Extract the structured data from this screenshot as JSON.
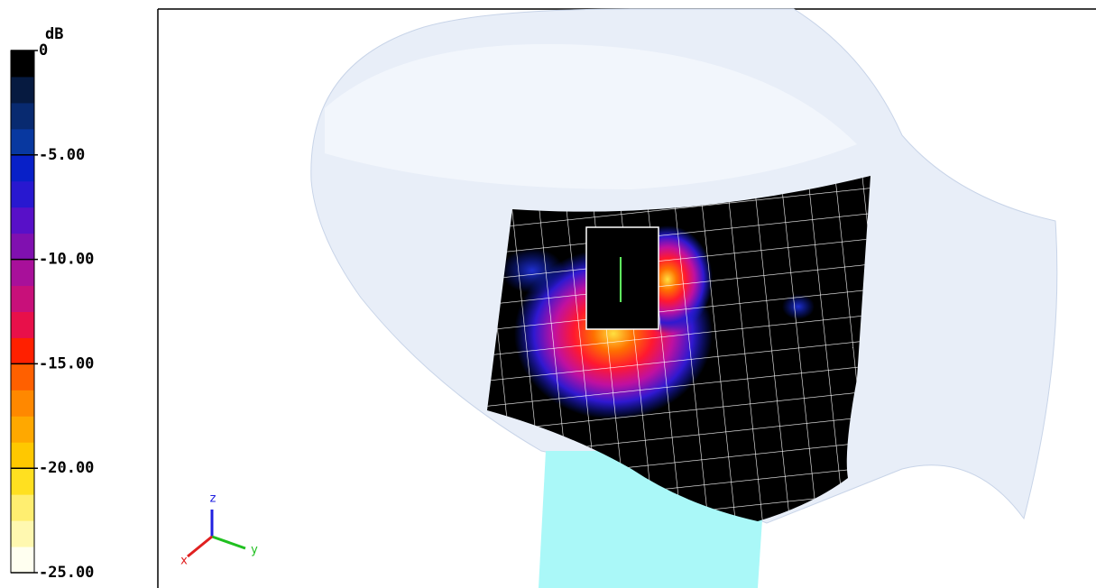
{
  "colorbar": {
    "title": "dB",
    "lim": [
      -25,
      0
    ],
    "ticks": [
      0,
      {
        "value": -5,
        "label": "-5.00"
      },
      {
        "value": -10,
        "label": "-10.00"
      },
      {
        "value": -15,
        "label": "-15.00"
      },
      {
        "value": -20,
        "label": "-20.00"
      },
      {
        "value": -25,
        "label": "-25.00"
      }
    ],
    "colors": [
      "#fffff0",
      "#fff8b0",
      "#ffee70",
      "#ffe020",
      "#ffc800",
      "#ffa800",
      "#ff8800",
      "#ff6000",
      "#ff2000",
      "#e8104a",
      "#c8107a",
      "#a8109a",
      "#8010b0",
      "#5810c8",
      "#2818d0",
      "#0820c8",
      "#0838a0",
      "#082a70",
      "#061a40",
      "#000000"
    ]
  },
  "triad": {
    "z": "z",
    "y": "y",
    "x": "x"
  }
}
